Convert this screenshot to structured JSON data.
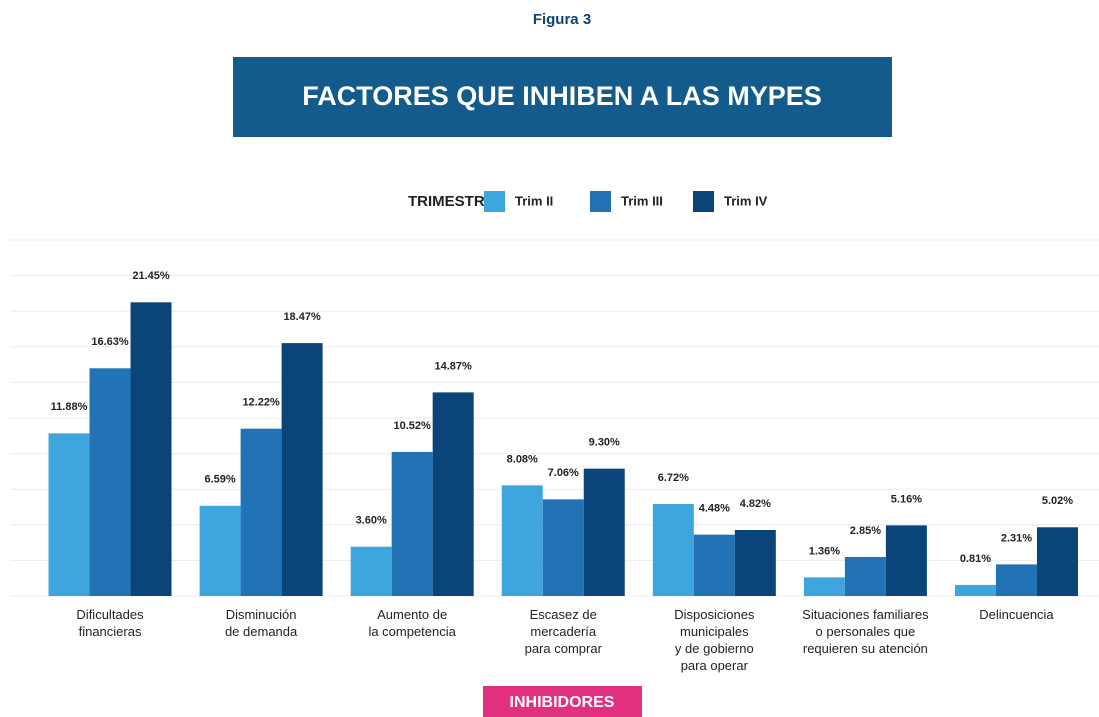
{
  "chart_data": {
    "type": "bar",
    "figure_label": "Figura 3",
    "title": "FACTORES QUE INHIBEN A LAS MYPES",
    "legend_title": "TRIMESTRE",
    "xlabel": "INHIBIDORES",
    "categories": [
      [
        "Dificultades",
        "financieras"
      ],
      [
        "Disminución",
        "de demanda"
      ],
      [
        "Aumento de",
        "la competencia"
      ],
      [
        "Escasez de",
        "mercadería",
        "para comprar"
      ],
      [
        "Disposiciones",
        "municipales",
        "y de gobierno",
        "para operar"
      ],
      [
        "Situaciones familiares",
        "o personales que",
        "requieren su atención"
      ],
      [
        "Delincuencia"
      ]
    ],
    "series": [
      {
        "name": "Trim II",
        "color": "#3ea6dc",
        "values": [
          11.88,
          6.59,
          3.6,
          8.08,
          6.72,
          1.36,
          0.81
        ],
        "value_labels": [
          "11.88%",
          "6.59%",
          "3.60%",
          "8.08%",
          "6.72%",
          "1.36%",
          "0.81%"
        ]
      },
      {
        "name": "Trim III",
        "color": "#2173b6",
        "values": [
          16.63,
          12.22,
          10.52,
          7.06,
          4.48,
          2.85,
          2.31
        ],
        "value_labels": [
          "16.63%",
          "12.22%",
          "10.52%",
          "7.06%",
          "4.48%",
          "2.85%",
          "2.31%"
        ]
      },
      {
        "name": "Trim IV",
        "color": "#0b4479",
        "values": [
          21.45,
          18.47,
          14.87,
          9.3,
          4.82,
          5.16,
          5.02
        ],
        "value_labels": [
          "21.45%",
          "18.47%",
          "14.87%",
          "9.30%",
          "4.82%",
          "5.16%",
          "5.02%"
        ]
      }
    ],
    "ylim": [
      0,
      26
    ],
    "yticks": [
      0,
      2.6,
      5.2,
      7.8,
      10.4,
      13,
      15.6,
      18.2,
      20.8,
      23.4,
      26
    ],
    "grid": true
  }
}
